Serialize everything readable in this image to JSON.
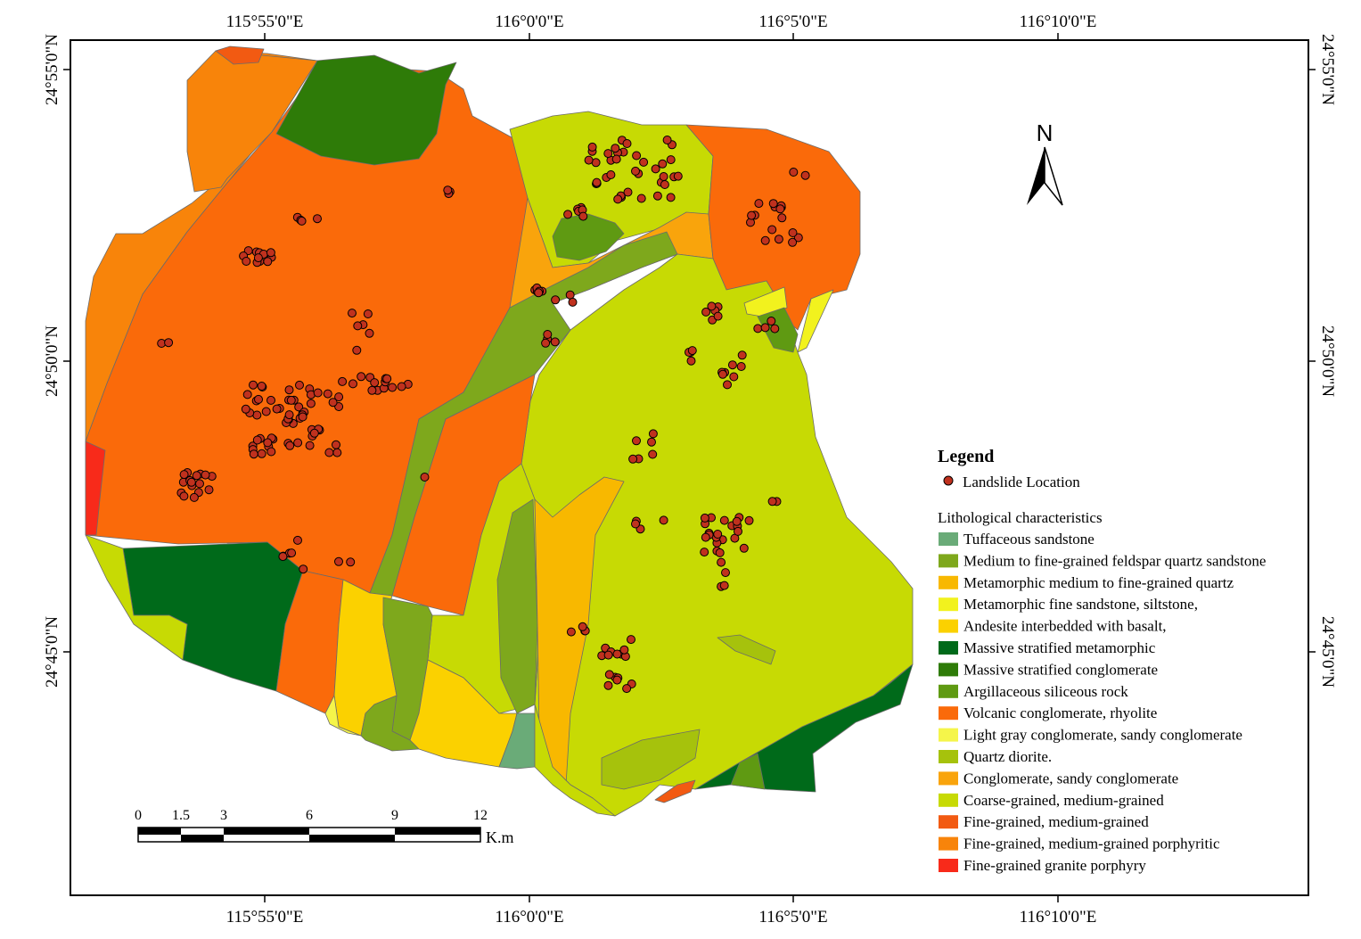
{
  "map": {
    "top_labels": [
      "115°55'0\"E",
      "116°0'0\"E",
      "116°5'0\"E",
      "116°10'0\"E"
    ],
    "bottom_labels": [
      "115°55'0\"E",
      "116°0'0\"E",
      "116°5'0\"E",
      "116°10'0\"E"
    ],
    "left_labels": [
      "24°55'0\"N",
      "24°50'0\"N",
      "24°45'0\"N"
    ],
    "right_labels": [
      "24°55'0\"N",
      "24°50'0\"N",
      "24°45'0\"N"
    ]
  },
  "north_arrow": {
    "label": "N"
  },
  "scale_bar": {
    "ticks": [
      "0",
      "1.5",
      "3",
      "6",
      "9",
      "12"
    ],
    "unit": "K.m"
  },
  "legend": {
    "title": "Legend",
    "landslide_label": "Landslide Location",
    "landslide_color": "#c0311e",
    "section_title": "Lithological characteristics",
    "items": [
      {
        "label": "Tuffaceous sandstone",
        "color": "#6aab78"
      },
      {
        "label": "Medium to fine-grained feldspar quartz sandstone",
        "color": "#7ea81c"
      },
      {
        "label": "Metamorphic medium to fine-grained quartz",
        "color": "#f8b800"
      },
      {
        "label": "Metamorphic fine sandstone, siltstone,",
        "color": "#f2f21e"
      },
      {
        "label": "Andesite interbedded with basalt,",
        "color": "#fbd100"
      },
      {
        "label": "Massive stratified metamorphic",
        "color": "#006a1a"
      },
      {
        "label": "Massive stratified conglomerate",
        "color": "#2e7b08"
      },
      {
        "label": "Argillaceous siliceous rock",
        "color": "#5f9a12"
      },
      {
        "label": "Volcanic conglomerate, rhyolite",
        "color": "#fa6a0a"
      },
      {
        "label": "Light gray conglomerate, sandy conglomerate",
        "color": "#f5f54a"
      },
      {
        "label": "Quartz diorite.",
        "color": "#a6c20c"
      },
      {
        "label": "Conglomerate, sandy conglomerate",
        "color": "#f9a40c"
      },
      {
        "label": "Coarse-grained, medium-grained",
        "color": "#c7da04"
      },
      {
        "label": "Fine-grained, medium-grained",
        "color": "#f25a12"
      },
      {
        "label": "Fine-grained, medium-grained porphyritic",
        "color": "#f8840a"
      },
      {
        "label": "Fine-grained granite porphyry",
        "color": "#f82a1a"
      }
    ]
  }
}
